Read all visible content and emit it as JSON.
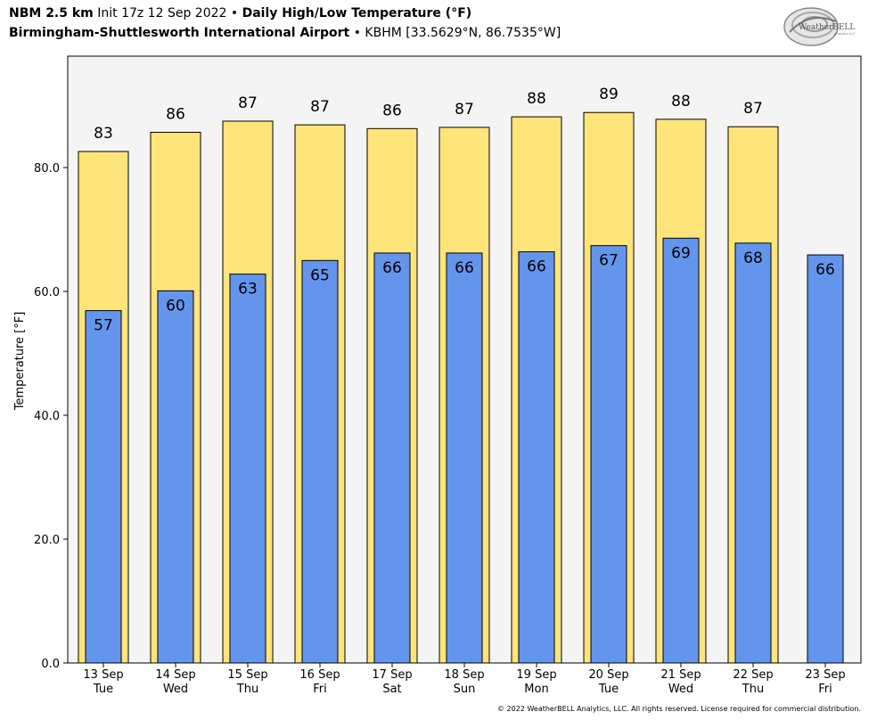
{
  "header": {
    "model": "NBM 2.5 km",
    "init": "Init 17z 12 Sep 2022",
    "sep": "•",
    "product": "Daily High/Low Temperature (°F)",
    "station_name": "Birmingham-Shuttlesworth International Airport",
    "station_info": "KBHM [33.5629°N, 86.7535°W]"
  },
  "logo": {
    "brand": "WeatherBELL",
    "sub": "Analytics LLC"
  },
  "footer": {
    "copyright": "© 2022 WeatherBELL Analytics, LLC. All rights reserved. License required for commercial distribution."
  },
  "colors": {
    "high": "#FFE47A",
    "low": "#6495ED",
    "plot_bg": "#F4F4F4"
  },
  "chart_data": {
    "type": "bar",
    "ylabel": "Temperature [°F]",
    "ylim": [
      0,
      98
    ],
    "yticks": [
      0,
      20,
      40,
      60,
      80
    ],
    "ytick_labels": [
      "0.0",
      "20.0",
      "40.0",
      "60.0",
      "80.0"
    ],
    "grid": false,
    "categories": [
      {
        "date": "13 Sep",
        "day": "Tue"
      },
      {
        "date": "14 Sep",
        "day": "Wed"
      },
      {
        "date": "15 Sep",
        "day": "Thu"
      },
      {
        "date": "16 Sep",
        "day": "Fri"
      },
      {
        "date": "17 Sep",
        "day": "Sat"
      },
      {
        "date": "18 Sep",
        "day": "Sun"
      },
      {
        "date": "19 Sep",
        "day": "Mon"
      },
      {
        "date": "20 Sep",
        "day": "Tue"
      },
      {
        "date": "21 Sep",
        "day": "Wed"
      },
      {
        "date": "22 Sep",
        "day": "Thu"
      },
      {
        "date": "23 Sep",
        "day": "Fri"
      }
    ],
    "series": [
      {
        "key": "high",
        "values": [
          82.6,
          85.7,
          87.5,
          86.9,
          86.3,
          86.5,
          88.2,
          88.9,
          87.8,
          86.6,
          null
        ],
        "labels": [
          "83",
          "86",
          "87",
          "87",
          "86",
          "87",
          "88",
          "89",
          "88",
          "87",
          null
        ]
      },
      {
        "key": "low",
        "values": [
          56.9,
          60.1,
          62.8,
          65.0,
          66.2,
          66.2,
          66.4,
          67.4,
          68.6,
          67.8,
          65.9
        ],
        "labels": [
          "57",
          "60",
          "63",
          "65",
          "66",
          "66",
          "66",
          "67",
          "69",
          "68",
          "66"
        ]
      }
    ]
  }
}
